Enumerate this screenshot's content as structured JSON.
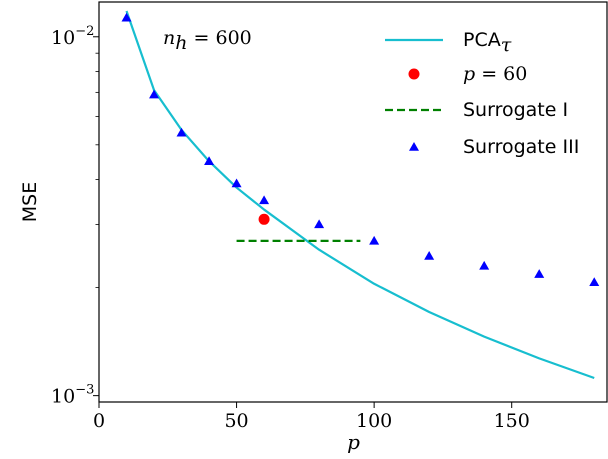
{
  "chart_data": {
    "type": "line",
    "xlabel": "p",
    "ylabel": "MSE",
    "xlim": [
      0,
      185
    ],
    "ylim": [
      0.00096,
      0.0125
    ],
    "yscale": "log",
    "xticks": [
      0,
      50,
      100,
      150
    ],
    "yticks": [
      {
        "value": 0.01,
        "base": "10",
        "exp": "−2"
      },
      {
        "value": 0.001,
        "base": "10",
        "exp": "−3"
      }
    ],
    "annotation": {
      "var": "n",
      "sub": "h",
      "rest": " = 600"
    },
    "legend_position": "upper-right",
    "series": [
      {
        "name": "PCA",
        "name_sub": "τ",
        "kind": "line",
        "color": "#17becf",
        "x": [
          10,
          20,
          30,
          40,
          50,
          60,
          80,
          100,
          120,
          140,
          160,
          180
        ],
        "y": [
          0.0118,
          0.0071,
          0.0055,
          0.0045,
          0.0038,
          0.0033,
          0.00255,
          0.00205,
          0.00171,
          0.00146,
          0.00127,
          0.00112
        ]
      },
      {
        "name_var": "p",
        "name_rest": " = 60",
        "kind": "point",
        "color": "#ff0000",
        "x": [
          60
        ],
        "y": [
          0.0031
        ]
      },
      {
        "name": "Surrogate I",
        "kind": "dashed",
        "color": "#008000",
        "x": [
          50,
          95
        ],
        "y": [
          0.0027,
          0.0027
        ]
      },
      {
        "name": "Surrogate III",
        "kind": "triangle",
        "color": "#0000ff",
        "x": [
          10,
          20,
          30,
          40,
          50,
          60,
          80,
          100,
          120,
          140,
          160,
          180
        ],
        "y": [
          0.0113,
          0.0069,
          0.0054,
          0.0045,
          0.0039,
          0.0035,
          0.003,
          0.0027,
          0.00245,
          0.0023,
          0.00218,
          0.00207
        ]
      }
    ]
  }
}
